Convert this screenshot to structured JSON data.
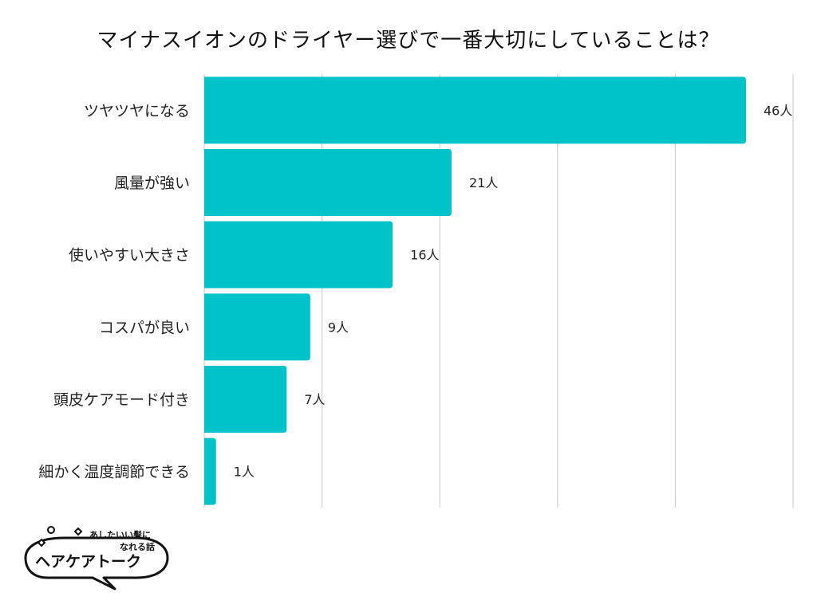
{
  "chart_data": {
    "type": "bar",
    "orientation": "horizontal",
    "title": "マイナスイオンのドライヤー選びで一番大切にしていることは？",
    "categories": [
      "ツヤツヤになる",
      "風量が強い",
      "使いやすい大きさ",
      "コスパが良い",
      "頭皮ケアモード付き",
      "細かく温度調節できる"
    ],
    "values": [
      46,
      21,
      16,
      9,
      7,
      1
    ],
    "value_labels": [
      "46人",
      "21人",
      "16人",
      "9人",
      "7人",
      "1人"
    ],
    "xlim": [
      0,
      50
    ],
    "xticks": [
      "0",
      "10",
      "20",
      "30",
      "40",
      "50"
    ],
    "grid": true,
    "bar_color": "#00C2C9",
    "grid_color": "#D0D0D0"
  },
  "logo": {
    "tagline_line1": "あしたいい髪に",
    "tagline_line2": "なれる話",
    "name": "ヘアケアトーク"
  }
}
